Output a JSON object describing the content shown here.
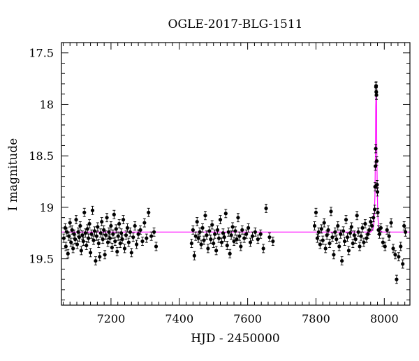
{
  "chart_data": {
    "type": "scatter",
    "title": "OGLE-2017-BLG-1511",
    "xlabel": "HJD - 2450000",
    "ylabel": "I magnitude",
    "xlim": [
      7055,
      8075
    ],
    "ylim": [
      19.95,
      17.4
    ],
    "y_inverted": true,
    "xticks": [
      7200,
      7400,
      7600,
      7800,
      8000
    ],
    "yticks": [
      17.5,
      18,
      18.5,
      19,
      19.5
    ],
    "ytick_labels": [
      "17.5",
      "18",
      "18.5",
      "19",
      "19.5"
    ],
    "grid": false,
    "colors": {
      "points": "#000000",
      "model": "#ff00ff",
      "axes": "#000000"
    },
    "series": [
      {
        "kind": "observations",
        "style": "black filled circles with vertical error bars",
        "points": [
          [
            7062,
            19.3
          ],
          [
            7066,
            19.2
          ],
          [
            7068,
            19.38
          ],
          [
            7071,
            19.24
          ],
          [
            7074,
            19.45
          ],
          [
            7077,
            19.28
          ],
          [
            7080,
            19.15
          ],
          [
            7083,
            19.34
          ],
          [
            7086,
            19.22
          ],
          [
            7089,
            19.4
          ],
          [
            7092,
            19.26
          ],
          [
            7095,
            19.31
          ],
          [
            7098,
            19.12
          ],
          [
            7101,
            19.36
          ],
          [
            7104,
            19.24
          ],
          [
            7107,
            19.29
          ],
          [
            7110,
            19.18
          ],
          [
            7113,
            19.42
          ],
          [
            7116,
            19.27
          ],
          [
            7119,
            19.33
          ],
          [
            7122,
            19.05
          ],
          [
            7125,
            19.25
          ],
          [
            7128,
            19.37
          ],
          [
            7131,
            19.21
          ],
          [
            7134,
            19.3
          ],
          [
            7137,
            19.16
          ],
          [
            7140,
            19.44
          ],
          [
            7143,
            19.26
          ],
          [
            7146,
            19.03
          ],
          [
            7149,
            19.32
          ],
          [
            7152,
            19.23
          ],
          [
            7155,
            19.52
          ],
          [
            7158,
            19.28
          ],
          [
            7161,
            19.19
          ],
          [
            7164,
            19.35
          ],
          [
            7167,
            19.48
          ],
          [
            7170,
            19.25
          ],
          [
            7173,
            19.14
          ],
          [
            7176,
            19.31
          ],
          [
            7179,
            19.22
          ],
          [
            7182,
            19.46
          ],
          [
            7185,
            19.27
          ],
          [
            7188,
            19.1
          ],
          [
            7191,
            19.34
          ],
          [
            7194,
            19.24
          ],
          [
            7197,
            19.3
          ],
          [
            7200,
            19.18
          ],
          [
            7203,
            19.39
          ],
          [
            7206,
            19.26
          ],
          [
            7209,
            19.07
          ],
          [
            7212,
            19.33
          ],
          [
            7215,
            19.21
          ],
          [
            7218,
            19.43
          ],
          [
            7221,
            19.28
          ],
          [
            7224,
            19.16
          ],
          [
            7227,
            19.35
          ],
          [
            7230,
            19.25
          ],
          [
            7233,
            19.31
          ],
          [
            7236,
            19.12
          ],
          [
            7240,
            19.4
          ],
          [
            7244,
            19.27
          ],
          [
            7248,
            19.2
          ],
          [
            7252,
            19.34
          ],
          [
            7256,
            19.24
          ],
          [
            7260,
            19.44
          ],
          [
            7265,
            19.29
          ],
          [
            7270,
            19.18
          ],
          [
            7275,
            19.36
          ],
          [
            7280,
            19.26
          ],
          [
            7286,
            19.22
          ],
          [
            7292,
            19.33
          ],
          [
            7298,
            19.15
          ],
          [
            7304,
            19.3
          ],
          [
            7310,
            19.05
          ],
          [
            7318,
            19.28
          ],
          [
            7326,
            19.24
          ],
          [
            7332,
            19.38
          ],
          [
            7436,
            19.35
          ],
          [
            7440,
            19.22
          ],
          [
            7444,
            19.47
          ],
          [
            7448,
            19.28
          ],
          [
            7452,
            19.14
          ],
          [
            7456,
            19.3
          ],
          [
            7460,
            19.24
          ],
          [
            7464,
            19.36
          ],
          [
            7468,
            19.2
          ],
          [
            7472,
            19.32
          ],
          [
            7476,
            19.08
          ],
          [
            7480,
            19.27
          ],
          [
            7484,
            19.4
          ],
          [
            7488,
            19.23
          ],
          [
            7492,
            19.31
          ],
          [
            7496,
            19.17
          ],
          [
            7500,
            19.35
          ],
          [
            7504,
            19.26
          ],
          [
            7508,
            19.42
          ],
          [
            7512,
            19.22
          ],
          [
            7516,
            19.3
          ],
          [
            7520,
            19.12
          ],
          [
            7524,
            19.34
          ],
          [
            7528,
            19.25
          ],
          [
            7532,
            19.29
          ],
          [
            7536,
            19.06
          ],
          [
            7540,
            19.37
          ],
          [
            7544,
            19.24
          ],
          [
            7548,
            19.45
          ],
          [
            7552,
            19.27
          ],
          [
            7556,
            19.19
          ],
          [
            7560,
            19.33
          ],
          [
            7564,
            19.23
          ],
          [
            7568,
            19.31
          ],
          [
            7572,
            19.1
          ],
          [
            7576,
            19.28
          ],
          [
            7580,
            19.38
          ],
          [
            7584,
            19.22
          ],
          [
            7590,
            19.3
          ],
          [
            7596,
            19.26
          ],
          [
            7602,
            19.2
          ],
          [
            7608,
            19.34
          ],
          [
            7614,
            19.28
          ],
          [
            7622,
            19.24
          ],
          [
            7630,
            19.31
          ],
          [
            7638,
            19.26
          ],
          [
            7646,
            19.4
          ],
          [
            7654,
            19.01
          ],
          [
            7664,
            19.29
          ],
          [
            7674,
            19.33
          ],
          [
            7796,
            19.18
          ],
          [
            7800,
            19.05
          ],
          [
            7804,
            19.3
          ],
          [
            7808,
            19.24
          ],
          [
            7812,
            19.36
          ],
          [
            7816,
            19.21
          ],
          [
            7820,
            19.32
          ],
          [
            7824,
            19.15
          ],
          [
            7828,
            19.4
          ],
          [
            7832,
            19.27
          ],
          [
            7836,
            19.22
          ],
          [
            7840,
            19.35
          ],
          [
            7844,
            19.04
          ],
          [
            7848,
            19.29
          ],
          [
            7852,
            19.46
          ],
          [
            7856,
            19.24
          ],
          [
            7860,
            19.31
          ],
          [
            7864,
            19.18
          ],
          [
            7868,
            19.38
          ],
          [
            7872,
            19.26
          ],
          [
            7876,
            19.52
          ],
          [
            7880,
            19.23
          ],
          [
            7884,
            19.33
          ],
          [
            7888,
            19.12
          ],
          [
            7892,
            19.29
          ],
          [
            7896,
            19.42
          ],
          [
            7900,
            19.25
          ],
          [
            7904,
            19.19
          ],
          [
            7908,
            19.35
          ],
          [
            7912,
            19.27
          ],
          [
            7916,
            19.31
          ],
          [
            7920,
            19.08
          ],
          [
            7924,
            19.24
          ],
          [
            7928,
            19.38
          ],
          [
            7932,
            19.28
          ],
          [
            7936,
            19.2
          ],
          [
            7940,
            19.34
          ],
          [
            7944,
            19.16
          ],
          [
            7948,
            19.3
          ],
          [
            7952,
            19.26
          ],
          [
            7956,
            19.22
          ],
          [
            7960,
            19.14
          ],
          [
            7964,
            19.18
          ],
          [
            7968,
            19.1
          ],
          [
            7972,
            19.02
          ],
          [
            7973,
            18.8
          ],
          [
            7974,
            18.6
          ],
          [
            7975,
            18.43
          ],
          [
            7975.5,
            17.83
          ],
          [
            7976,
            17.82
          ],
          [
            7976.5,
            17.88
          ],
          [
            7977,
            17.91
          ],
          [
            7978,
            18.55
          ],
          [
            7979,
            18.78
          ],
          [
            7980,
            18.85
          ],
          [
            7981,
            19.05
          ],
          [
            7983,
            19.22
          ],
          [
            7986,
            19.26
          ],
          [
            7990,
            19.2
          ],
          [
            7996,
            19.34
          ],
          [
            8002,
            19.38
          ],
          [
            8008,
            19.22
          ],
          [
            8014,
            19.28
          ],
          [
            8020,
            19.15
          ],
          [
            8026,
            19.4
          ],
          [
            8032,
            19.46
          ],
          [
            8036,
            19.7
          ],
          [
            8042,
            19.48
          ],
          [
            8048,
            19.38
          ],
          [
            8054,
            19.55
          ],
          [
            8058,
            19.18
          ],
          [
            8062,
            19.24
          ]
        ]
      },
      {
        "kind": "model",
        "style": "magenta line",
        "baseline": 19.24,
        "curve": [
          [
            7055,
            19.24
          ],
          [
            7960,
            19.24
          ],
          [
            7966,
            19.22
          ],
          [
            7969,
            19.18
          ],
          [
            7971,
            19.08
          ],
          [
            7972.5,
            18.88
          ],
          [
            7974,
            18.48
          ],
          [
            7975,
            18.02
          ],
          [
            7976,
            17.84
          ],
          [
            7977,
            17.92
          ],
          [
            7978,
            18.4
          ],
          [
            7979.5,
            18.86
          ],
          [
            7981,
            19.08
          ],
          [
            7983,
            19.18
          ],
          [
            7987,
            19.23
          ],
          [
            7995,
            19.24
          ],
          [
            8075,
            19.24
          ]
        ]
      }
    ]
  }
}
